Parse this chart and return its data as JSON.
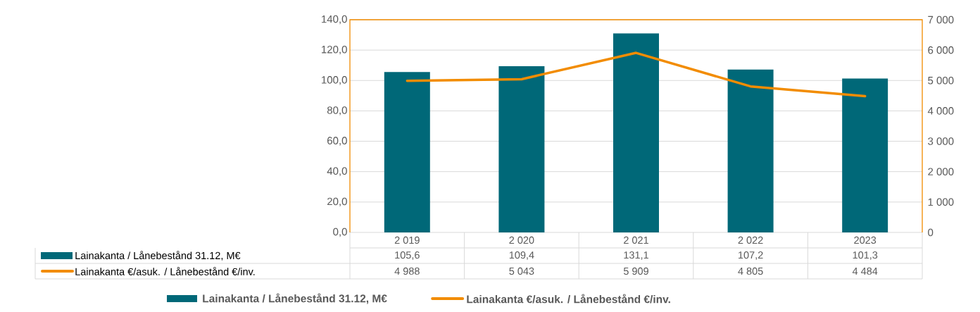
{
  "chart_data": {
    "type": "bar",
    "categories": [
      "2 019",
      "2 020",
      "2 021",
      "2 022",
      "2023"
    ],
    "series": [
      {
        "name": "Lainakanta / Lånebestånd 31.12, M€",
        "color": "#006878",
        "values": [
          105.6,
          109.4,
          131.1,
          107.2,
          101.3
        ],
        "value_labels": [
          "105,6",
          "109,4",
          "131,1",
          "107,2",
          "101,3"
        ]
      },
      {
        "name": "Lainakanta €/asuk. / Lånebestånd €/inv.",
        "type": "line",
        "axis": "y2",
        "color": "#F28C00",
        "values": [
          4988,
          5043,
          5909,
          4805,
          4484
        ],
        "value_labels": [
          "4 988",
          "5 043",
          "5 909",
          "4 805",
          "4 484"
        ]
      }
    ],
    "ylim": [
      0,
      140
    ],
    "yticks": [
      {
        "value": 0,
        "label": "0,0"
      },
      {
        "value": 20,
        "label": "20,0"
      },
      {
        "value": 40,
        "label": "40,0"
      },
      {
        "value": 60,
        "label": "60,0"
      },
      {
        "value": 80,
        "label": "80,0"
      },
      {
        "value": 100,
        "label": "100,0"
      },
      {
        "value": 120,
        "label": "120,0"
      },
      {
        "value": 140,
        "label": "140,0"
      }
    ],
    "y2lim": [
      0,
      7000
    ],
    "y2ticks": [
      0,
      {
        "value": 1000,
        "label": "1 000"
      },
      {
        "value": 2000,
        "label": "2 000"
      },
      {
        "value": 3000,
        "label": "3 000"
      },
      {
        "value": 4000,
        "label": "4 000"
      },
      {
        "value": 5000,
        "label": "5 000"
      },
      {
        "value": 6000,
        "label": "6 000"
      },
      {
        "value": 7000,
        "label": "7 000"
      }
    ],
    "grid": "y",
    "legend": "bottom"
  }
}
